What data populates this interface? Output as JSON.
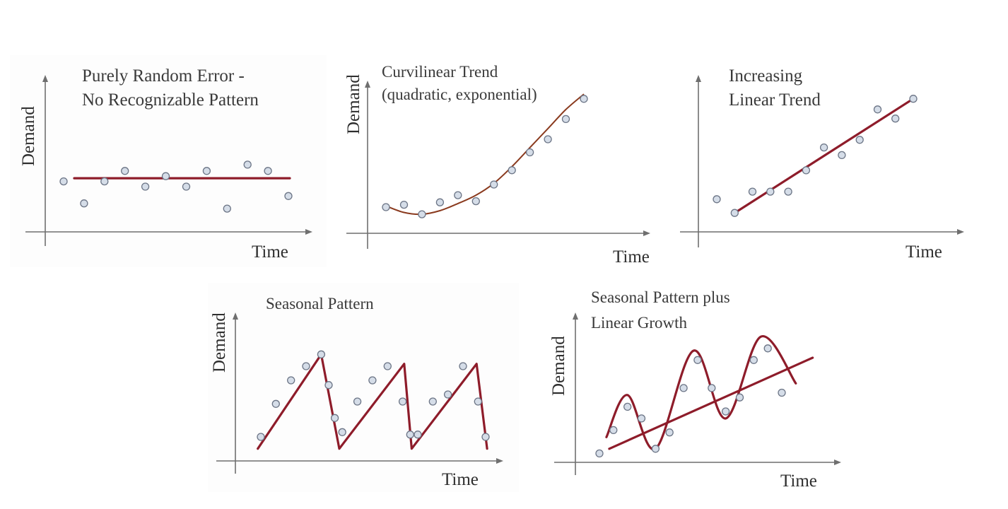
{
  "chart_data": [
    {
      "id": "random",
      "type": "scatter",
      "title_lines": [
        "Purely Random Error -",
        "No Recognizable Pattern"
      ],
      "xlabel": "Time",
      "ylabel": "Demand",
      "points": [
        [
          1,
          5.5
        ],
        [
          2,
          3.4
        ],
        [
          3,
          5.5
        ],
        [
          4,
          6.5
        ],
        [
          5,
          5.0
        ],
        [
          6,
          6.0
        ],
        [
          7,
          5.0
        ],
        [
          8,
          6.5
        ],
        [
          9,
          2.9
        ],
        [
          10,
          7.1
        ],
        [
          11,
          6.5
        ],
        [
          12,
          4.1
        ]
      ],
      "overlay": {
        "kind": "horizontal",
        "y": 5.8
      },
      "color": "#8e1c2a"
    },
    {
      "id": "curvilinear",
      "type": "scatter",
      "title_lines": [
        "Curvilinear Trend",
        "(quadratic, exponential)"
      ],
      "xlabel": "Time",
      "ylabel": "Demand",
      "points": [
        [
          1,
          2.2
        ],
        [
          2,
          2.4
        ],
        [
          3,
          1.6
        ],
        [
          4,
          2.6
        ],
        [
          5,
          3.2
        ],
        [
          6,
          2.7
        ],
        [
          7,
          4.1
        ],
        [
          8,
          5.3
        ],
        [
          9,
          6.8
        ],
        [
          10,
          7.9
        ],
        [
          11,
          9.6
        ],
        [
          12,
          11.3
        ]
      ],
      "overlay": {
        "kind": "curve",
        "points": [
          [
            1,
            2.3
          ],
          [
            2,
            1.75
          ],
          [
            3,
            1.6
          ],
          [
            4,
            1.9
          ],
          [
            5,
            2.5
          ],
          [
            6,
            3.2
          ],
          [
            7,
            4.2
          ],
          [
            8,
            5.6
          ],
          [
            9,
            7.2
          ],
          [
            10,
            8.8
          ],
          [
            11,
            10.4
          ],
          [
            12,
            11.7
          ]
        ]
      },
      "color": "#8a3a1e"
    },
    {
      "id": "linear",
      "type": "scatter",
      "title_lines": [
        "Increasing",
        "Linear Trend"
      ],
      "xlabel": "Time",
      "ylabel": "",
      "points": [
        [
          1,
          2.7
        ],
        [
          2,
          1.8
        ],
        [
          3,
          3.2
        ],
        [
          4,
          3.2
        ],
        [
          5,
          3.2
        ],
        [
          6,
          4.6
        ],
        [
          7,
          6.1
        ],
        [
          8,
          5.6
        ],
        [
          9,
          6.6
        ],
        [
          10,
          8.6
        ],
        [
          11,
          8.0
        ],
        [
          12,
          9.3
        ]
      ],
      "overlay": {
        "kind": "line",
        "from": [
          2,
          1.8
        ],
        "to": [
          12,
          9.3
        ]
      },
      "color": "#8e1c2a"
    },
    {
      "id": "seasonal",
      "type": "scatter",
      "title_lines": [
        "Seasonal Pattern"
      ],
      "xlabel": "Time",
      "ylabel": "Demand",
      "points": [
        [
          1,
          1.5
        ],
        [
          2,
          2.9
        ],
        [
          3,
          3.9
        ],
        [
          4,
          4.5
        ],
        [
          5,
          5.0
        ],
        [
          5.5,
          3.7
        ],
        [
          5.9,
          2.3
        ],
        [
          6.4,
          1.7
        ],
        [
          7.4,
          3.0
        ],
        [
          8.4,
          3.9
        ],
        [
          9.4,
          4.5
        ],
        [
          10.4,
          3.0
        ],
        [
          10.9,
          1.6
        ],
        [
          11.4,
          1.6
        ],
        [
          12.4,
          3.0
        ],
        [
          13.4,
          3.3
        ],
        [
          14.4,
          4.5
        ],
        [
          15.4,
          3.0
        ],
        [
          15.9,
          1.5
        ]
      ],
      "overlay": {
        "kind": "polyline",
        "points": [
          [
            0.8,
            1.0
          ],
          [
            5.0,
            5.0
          ],
          [
            6.2,
            1.0
          ],
          [
            10.5,
            4.6
          ],
          [
            11.0,
            1.0
          ],
          [
            15.3,
            4.6
          ],
          [
            16.0,
            1.0
          ]
        ]
      },
      "color": "#8e1c2a"
    },
    {
      "id": "seasonal-growth",
      "type": "scatter",
      "title_lines": [
        "Seasonal Pattern plus",
        "Linear Growth"
      ],
      "xlabel": "Time",
      "ylabel": "Demand",
      "points": [
        [
          1,
          0.8
        ],
        [
          2,
          1.8
        ],
        [
          3,
          2.8
        ],
        [
          4,
          2.3
        ],
        [
          5,
          1.0
        ],
        [
          6,
          1.7
        ],
        [
          7,
          3.6
        ],
        [
          8,
          4.8
        ],
        [
          9,
          3.6
        ],
        [
          10,
          2.6
        ],
        [
          11,
          3.2
        ],
        [
          12,
          4.8
        ],
        [
          13,
          5.3
        ],
        [
          14,
          3.4
        ]
      ],
      "overlay": {
        "kind": "line-plus-wave",
        "line_from": [
          1.7,
          1.0
        ],
        "line_to": [
          16.2,
          4.9
        ],
        "wave": [
          [
            1.5,
            1.5
          ],
          [
            3.0,
            3.3
          ],
          [
            5.0,
            1.0
          ],
          [
            7.7,
            5.2
          ],
          [
            10.0,
            2.3
          ],
          [
            12.5,
            5.8
          ],
          [
            15.0,
            3.8
          ]
        ]
      },
      "color": "#8e1c2a"
    }
  ]
}
